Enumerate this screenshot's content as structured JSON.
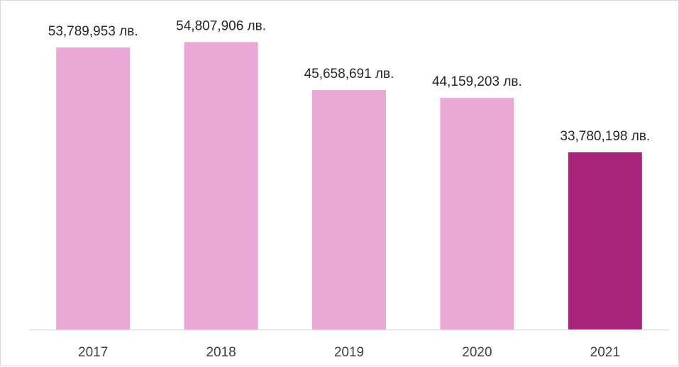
{
  "chart_data": {
    "type": "bar",
    "categories": [
      "2017",
      "2018",
      "2019",
      "2020",
      "2021"
    ],
    "values": [
      53789953,
      54807906,
      45658691,
      44159203,
      33780198
    ],
    "data_labels": [
      "53,789,953 лв.",
      "54,807,906 лв.",
      "45,658,691 лв.",
      "44,159,203 лв.",
      "33,780,198 лв."
    ],
    "bar_colors": [
      "#eba8d6",
      "#eba8d6",
      "#eba8d6",
      "#eba8d6",
      "#a8237a"
    ],
    "title": "",
    "xlabel": "",
    "ylabel": "",
    "ylim": [
      0,
      60000000
    ],
    "grid": false,
    "legend": "none",
    "axis_line_color": "#d9d9d9"
  }
}
